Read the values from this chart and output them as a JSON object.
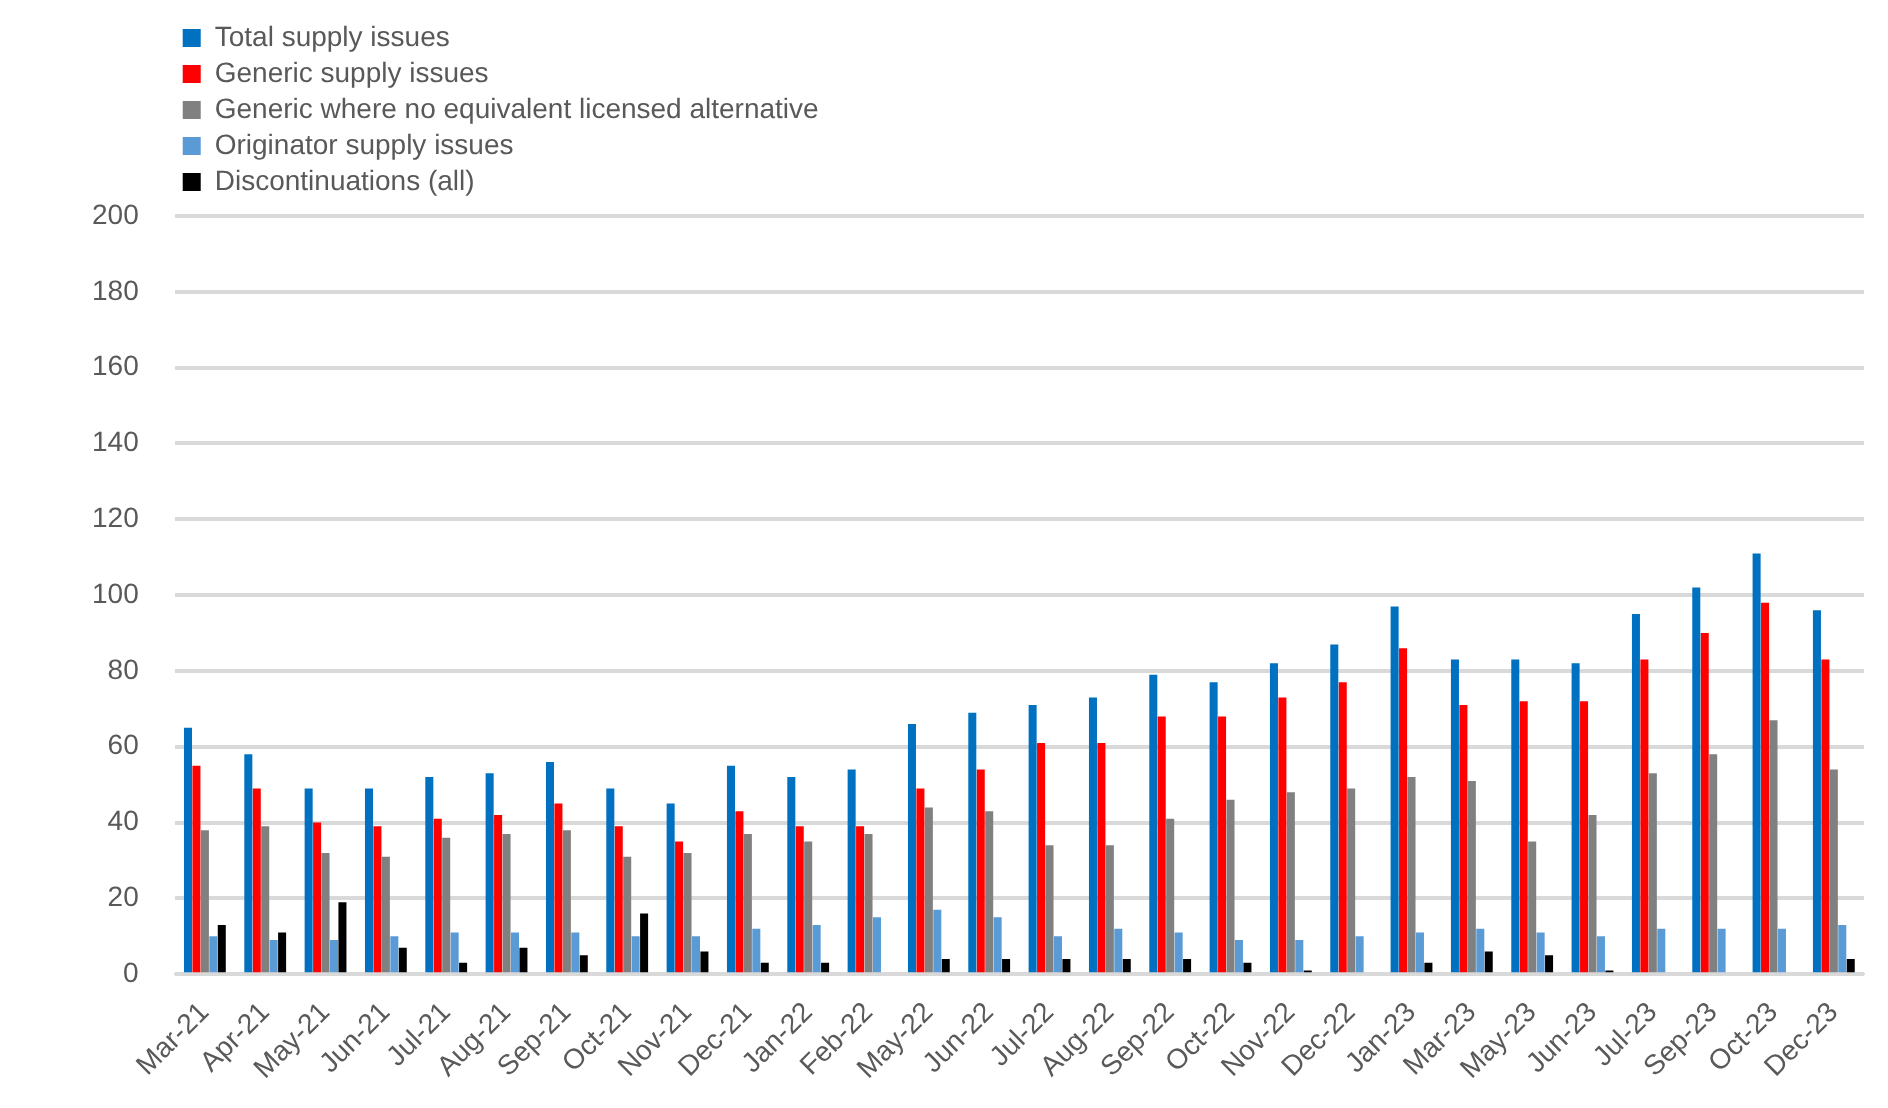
{
  "chart_data": {
    "type": "bar",
    "categories": [
      "Mar-21",
      "Apr-21",
      "May-21",
      "Jun-21",
      "Jul-21",
      "Aug-21",
      "Sep-21",
      "Oct-21",
      "Nov-21",
      "Dec-21",
      "Jan-22",
      "Feb-22",
      "May-22",
      "Jun-22",
      "Jul-22",
      "Aug-22",
      "Sep-22",
      "Oct-22",
      "Nov-22",
      "Dec-22",
      "Jan-23",
      "Mar-23",
      "May-23",
      "Jun-23",
      "Jul-23",
      "Sep-23",
      "Oct-23",
      "Dec-23"
    ],
    "series": [
      {
        "name": "Total supply issues",
        "color": "#0070c0",
        "values": [
          65,
          58,
          49,
          49,
          52,
          53,
          56,
          49,
          45,
          55,
          52,
          54,
          66,
          69,
          71,
          73,
          79,
          77,
          82,
          87,
          97,
          83,
          83,
          82,
          95,
          102,
          111,
          96
        ]
      },
      {
        "name": "Generic supply issues",
        "color": "#ff0000",
        "values": [
          55,
          49,
          40,
          39,
          41,
          42,
          45,
          39,
          35,
          43,
          39,
          39,
          49,
          54,
          61,
          61,
          68,
          68,
          73,
          77,
          86,
          71,
          72,
          72,
          83,
          90,
          98,
          83
        ]
      },
      {
        "name": "Generic where no equivalent licensed alternative",
        "color": "#808080",
        "values": [
          38,
          39,
          32,
          31,
          36,
          37,
          38,
          31,
          32,
          37,
          35,
          37,
          44,
          43,
          34,
          34,
          41,
          46,
          48,
          49,
          52,
          51,
          35,
          42,
          53,
          58,
          67,
          54
        ]
      },
      {
        "name": "Originator supply issues",
        "color": "#5b9bd5",
        "values": [
          10,
          9,
          9,
          10,
          11,
          11,
          11,
          10,
          10,
          12,
          13,
          15,
          17,
          15,
          10,
          12,
          11,
          9,
          9,
          10,
          11,
          12,
          11,
          10,
          12,
          12,
          12,
          13
        ]
      },
      {
        "name": "Discontinuations (all)",
        "color": "#000000",
        "values": [
          13,
          11,
          19,
          7,
          3,
          7,
          5,
          16,
          6,
          3,
          3,
          null,
          4,
          4,
          4,
          4,
          4,
          3,
          1,
          null,
          3,
          6,
          5,
          1,
          null,
          null,
          null,
          4
        ]
      }
    ],
    "ylim": [
      0,
      200
    ],
    "yticks": [
      0,
      20,
      40,
      60,
      80,
      100,
      120,
      140,
      160,
      180,
      200
    ],
    "grid": "y",
    "legend": "top left"
  }
}
